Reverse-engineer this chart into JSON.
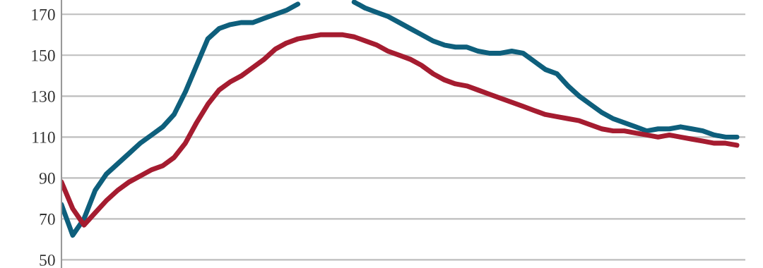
{
  "chart_data": {
    "type": "line",
    "categories": [
      null,
      null,
      null,
      null,
      null,
      null,
      null,
      null,
      null,
      null,
      null,
      null,
      null,
      null,
      null,
      null,
      null,
      null,
      null,
      null,
      null,
      null,
      null,
      null,
      null,
      null,
      null,
      null,
      null,
      null,
      null,
      null,
      null,
      null,
      null,
      null,
      null,
      null,
      null,
      null,
      null,
      null,
      null,
      null,
      null,
      null,
      null,
      null,
      null,
      null,
      null,
      null,
      null,
      null,
      null,
      null,
      null,
      null,
      null,
      null,
      null
    ],
    "series": [
      {
        "color": "#0e5f7c",
        "values": [
          77,
          62,
          70,
          84,
          92,
          97,
          102,
          107,
          111,
          115,
          121,
          132,
          145,
          158,
          163,
          165,
          166,
          166,
          168,
          170,
          172,
          175,
          null,
          null,
          null,
          null,
          176,
          173,
          171,
          169,
          166,
          163,
          160,
          157,
          155,
          154,
          154,
          152,
          151,
          151,
          152,
          151,
          147,
          143,
          141,
          135,
          130,
          126,
          122,
          119,
          117,
          115,
          113,
          114,
          114,
          115,
          114,
          113,
          111,
          110,
          110
        ]
      },
      {
        "color": "#a51c30",
        "values": [
          88,
          75,
          67,
          73,
          79,
          84,
          88,
          91,
          94,
          96,
          100,
          107,
          117,
          126,
          133,
          137,
          140,
          144,
          148,
          153,
          156,
          158,
          159,
          160,
          160,
          160,
          159,
          157,
          155,
          152,
          150,
          148,
          145,
          141,
          138,
          136,
          135,
          133,
          131,
          129,
          127,
          125,
          123,
          121,
          120,
          119,
          118,
          116,
          114,
          113,
          113,
          112,
          111,
          110,
          111,
          110,
          109,
          108,
          107,
          107,
          106
        ]
      }
    ],
    "ylim": [
      46,
      177
    ],
    "yticks": [
      50,
      70,
      90,
      110,
      130,
      150,
      170
    ],
    "grid": "y",
    "tick_labels": "y",
    "marker": "none",
    "line_style": "solid"
  }
}
